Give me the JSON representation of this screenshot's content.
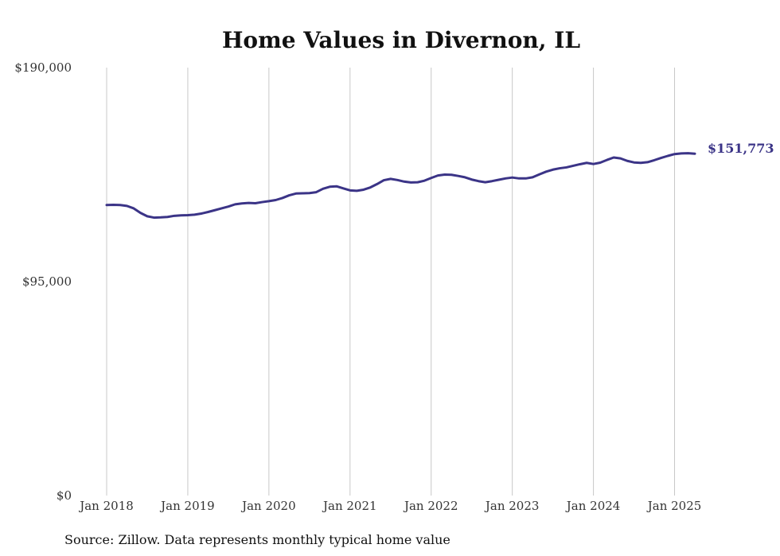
{
  "chart_data": {
    "type": "line",
    "title": "Home Values in Divernon, IL",
    "source": "Source: Zillow. Data represents monthly typical home value",
    "line_color": "#3b3487",
    "grid_color": "#c8c8c8",
    "ylim": [
      0,
      190000
    ],
    "y_ticks": [
      {
        "value": 0,
        "label": "$0"
      },
      {
        "value": 95000,
        "label": "$95,000"
      },
      {
        "value": 190000,
        "label": "$190,000"
      }
    ],
    "xlim": [
      "2018-01",
      "2025-04"
    ],
    "x_ticks": [
      {
        "date": "2018-01",
        "label": "Jan 2018"
      },
      {
        "date": "2019-01",
        "label": "Jan 2019"
      },
      {
        "date": "2020-01",
        "label": "Jan 2020"
      },
      {
        "date": "2021-01",
        "label": "Jan 2021"
      },
      {
        "date": "2022-01",
        "label": "Jan 2022"
      },
      {
        "date": "2023-01",
        "label": "Jan 2023"
      },
      {
        "date": "2024-01",
        "label": "Jan 2024"
      },
      {
        "date": "2025-01",
        "label": "Jan 2025"
      }
    ],
    "grid": {
      "vertical": true,
      "horizontal": false
    },
    "end_label": "$151,773",
    "series": [
      {
        "x": [
          "2018-01",
          "2018-02",
          "2018-03",
          "2018-04",
          "2018-05",
          "2018-06",
          "2018-07",
          "2018-08",
          "2018-09",
          "2018-10",
          "2018-11",
          "2018-12",
          "2019-01",
          "2019-02",
          "2019-03",
          "2019-04",
          "2019-05",
          "2019-06",
          "2019-07",
          "2019-08",
          "2019-09",
          "2019-10",
          "2019-11",
          "2019-12",
          "2020-01",
          "2020-02",
          "2020-03",
          "2020-04",
          "2020-05",
          "2020-06",
          "2020-07",
          "2020-08",
          "2020-09",
          "2020-10",
          "2020-11",
          "2020-12",
          "2021-01",
          "2021-02",
          "2021-03",
          "2021-04",
          "2021-05",
          "2021-06",
          "2021-07",
          "2021-08",
          "2021-09",
          "2021-10",
          "2021-11",
          "2021-12",
          "2022-01",
          "2022-02",
          "2022-03",
          "2022-04",
          "2022-05",
          "2022-06",
          "2022-07",
          "2022-08",
          "2022-09",
          "2022-10",
          "2022-11",
          "2022-12",
          "2023-01",
          "2023-02",
          "2023-03",
          "2023-04",
          "2023-05",
          "2023-06",
          "2023-07",
          "2023-08",
          "2023-09",
          "2023-10",
          "2023-11",
          "2023-12",
          "2024-01",
          "2024-02",
          "2024-03",
          "2024-04",
          "2024-05",
          "2024-06",
          "2024-07",
          "2024-08",
          "2024-09",
          "2024-10",
          "2024-11",
          "2024-12",
          "2025-01",
          "2025-02",
          "2025-03",
          "2025-04"
        ],
        "values": [
          129000,
          129100,
          129000,
          128600,
          127500,
          125500,
          124000,
          123400,
          123500,
          123700,
          124200,
          124400,
          124500,
          124700,
          125200,
          125900,
          126700,
          127500,
          128300,
          129300,
          129700,
          129900,
          129800,
          130300,
          130700,
          131200,
          132100,
          133300,
          134100,
          134200,
          134300,
          134700,
          136200,
          137100,
          137300,
          136400,
          135500,
          135300,
          135800,
          136800,
          138300,
          140000,
          140600,
          140100,
          139400,
          139000,
          139100,
          139800,
          141000,
          142100,
          142500,
          142400,
          141900,
          141300,
          140300,
          139600,
          139100,
          139600,
          140200,
          140800,
          141200,
          140800,
          140800,
          141300,
          142600,
          143800,
          144700,
          145300,
          145700,
          146400,
          147100,
          147700,
          147200,
          147800,
          149000,
          150100,
          149700,
          148600,
          147900,
          147700,
          148000,
          148900,
          149900,
          150800,
          151600,
          151900,
          152000,
          151773
        ]
      }
    ]
  }
}
